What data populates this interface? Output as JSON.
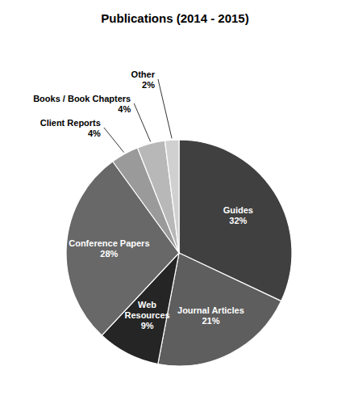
{
  "chart_data": {
    "type": "pie",
    "title": "Publications (2014 - 2015)",
    "categories": [
      "Guides",
      "Journal Articles",
      "Web\nResources",
      "Conference Papers",
      "Client Reports",
      "Books / Book Chapters",
      "Other"
    ],
    "values": [
      32,
      21,
      9,
      28,
      4,
      4,
      2
    ],
    "value_labels": [
      "32%",
      "21%",
      "9%",
      "28%",
      "4%",
      "4%",
      "2%"
    ],
    "colors": [
      "#404040",
      "#5e5e5e",
      "#252525",
      "#686868",
      "#9a9a9a",
      "#b8b8b8",
      "#d0d0d0"
    ],
    "data_labels": true
  }
}
